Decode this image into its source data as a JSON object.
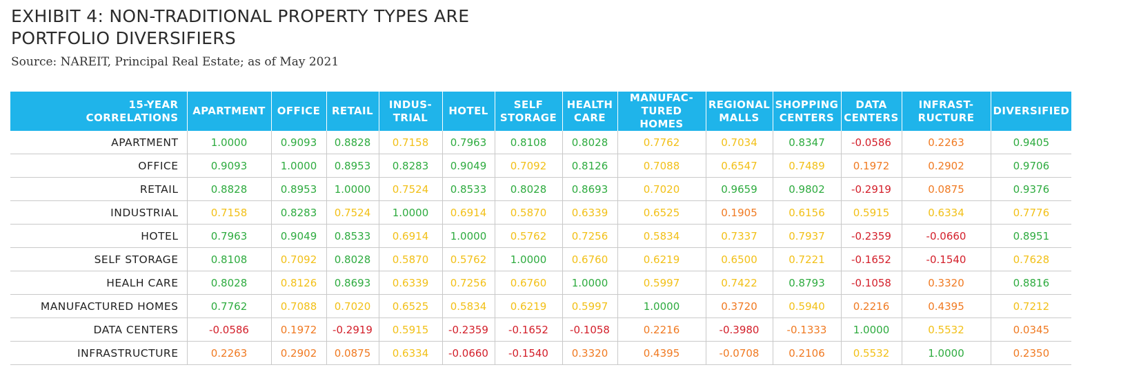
{
  "title_line1": "EXHIBIT 4: NON-TRADITIONAL PROPERTY TYPES ARE",
  "title_line2": "PORTFOLIO DIVERSIFIERS",
  "source": "Source: NAREIT, Principal Real Estate; as of May 2021",
  "colors": {
    "header_bg": "#1fb4ea",
    "green": "#2eab3f",
    "yellow": "#f2c018",
    "orange": "#f07a22",
    "red": "#d31f2a"
  },
  "corner_header": "15-YEAR\nCORRELATIONS",
  "columns": [
    "APARTMENT",
    "OFFICE",
    "RETAIL",
    "INDUS-\nTRIAL",
    "HOTEL",
    "SELF\nSTORAGE",
    "HEALTH\nCARE",
    "MANUFAC-\nTURED HOMES",
    "REGIONAL\nMALLS",
    "SHOPPING\nCENTERS",
    "DATA\nCENTERS",
    "INFRAST-\nRUCTURE",
    "DIVERSIFIED"
  ],
  "rows": [
    {
      "label": "APARTMENT",
      "cells": [
        {
          "v": "1.0000",
          "c": "green"
        },
        {
          "v": "0.9093",
          "c": "green"
        },
        {
          "v": "0.8828",
          "c": "green"
        },
        {
          "v": "0.7158",
          "c": "yellow"
        },
        {
          "v": "0.7963",
          "c": "green"
        },
        {
          "v": "0.8108",
          "c": "green"
        },
        {
          "v": "0.8028",
          "c": "green"
        },
        {
          "v": "0.7762",
          "c": "yellow"
        },
        {
          "v": "0.7034",
          "c": "yellow"
        },
        {
          "v": "0.8347",
          "c": "green"
        },
        {
          "v": "-0.0586",
          "c": "red"
        },
        {
          "v": "0.2263",
          "c": "orange"
        },
        {
          "v": "0.9405",
          "c": "green"
        }
      ]
    },
    {
      "label": "OFFICE",
      "cells": [
        {
          "v": "0.9093",
          "c": "green"
        },
        {
          "v": "1.0000",
          "c": "green"
        },
        {
          "v": "0.8953",
          "c": "green"
        },
        {
          "v": "0.8283",
          "c": "green"
        },
        {
          "v": "0.9049",
          "c": "green"
        },
        {
          "v": "0.7092",
          "c": "yellow"
        },
        {
          "v": "0.8126",
          "c": "green"
        },
        {
          "v": "0.7088",
          "c": "yellow"
        },
        {
          "v": "0.6547",
          "c": "yellow"
        },
        {
          "v": "0.7489",
          "c": "yellow"
        },
        {
          "v": "0.1972",
          "c": "orange"
        },
        {
          "v": "0.2902",
          "c": "orange"
        },
        {
          "v": "0.9706",
          "c": "green"
        }
      ]
    },
    {
      "label": "RETAIL",
      "cells": [
        {
          "v": "0.8828",
          "c": "green"
        },
        {
          "v": "0.8953",
          "c": "green"
        },
        {
          "v": "1.0000",
          "c": "green"
        },
        {
          "v": "0.7524",
          "c": "yellow"
        },
        {
          "v": "0.8533",
          "c": "green"
        },
        {
          "v": "0.8028",
          "c": "green"
        },
        {
          "v": "0.8693",
          "c": "green"
        },
        {
          "v": "0.7020",
          "c": "yellow"
        },
        {
          "v": "0.9659",
          "c": "green"
        },
        {
          "v": "0.9802",
          "c": "green"
        },
        {
          "v": "-0.2919",
          "c": "red"
        },
        {
          "v": "0.0875",
          "c": "orange"
        },
        {
          "v": "0.9376",
          "c": "green"
        }
      ]
    },
    {
      "label": "INDUSTRIAL",
      "cells": [
        {
          "v": "0.7158",
          "c": "yellow"
        },
        {
          "v": "0.8283",
          "c": "green"
        },
        {
          "v": "0.7524",
          "c": "yellow"
        },
        {
          "v": "1.0000",
          "c": "green"
        },
        {
          "v": "0.6914",
          "c": "yellow"
        },
        {
          "v": "0.5870",
          "c": "yellow"
        },
        {
          "v": "0.6339",
          "c": "yellow"
        },
        {
          "v": "0.6525",
          "c": "yellow"
        },
        {
          "v": "0.1905",
          "c": "orange"
        },
        {
          "v": "0.6156",
          "c": "yellow"
        },
        {
          "v": "0.5915",
          "c": "yellow"
        },
        {
          "v": "0.6334",
          "c": "yellow"
        },
        {
          "v": "0.7776",
          "c": "yellow"
        }
      ]
    },
    {
      "label": "HOTEL",
      "cells": [
        {
          "v": "0.7963",
          "c": "green"
        },
        {
          "v": "0.9049",
          "c": "green"
        },
        {
          "v": "0.8533",
          "c": "green"
        },
        {
          "v": "0.6914",
          "c": "yellow"
        },
        {
          "v": "1.0000",
          "c": "green"
        },
        {
          "v": "0.5762",
          "c": "yellow"
        },
        {
          "v": "0.7256",
          "c": "yellow"
        },
        {
          "v": "0.5834",
          "c": "yellow"
        },
        {
          "v": "0.7337",
          "c": "yellow"
        },
        {
          "v": "0.7937",
          "c": "yellow"
        },
        {
          "v": "-0.2359",
          "c": "red"
        },
        {
          "v": "-0.0660",
          "c": "red"
        },
        {
          "v": "0.8951",
          "c": "green"
        }
      ]
    },
    {
      "label": "SELF STORAGE",
      "cells": [
        {
          "v": "0.8108",
          "c": "green"
        },
        {
          "v": "0.7092",
          "c": "yellow"
        },
        {
          "v": "0.8028",
          "c": "green"
        },
        {
          "v": "0.5870",
          "c": "yellow"
        },
        {
          "v": "0.5762",
          "c": "yellow"
        },
        {
          "v": "1.0000",
          "c": "green"
        },
        {
          "v": "0.6760",
          "c": "yellow"
        },
        {
          "v": "0.6219",
          "c": "yellow"
        },
        {
          "v": "0.6500",
          "c": "yellow"
        },
        {
          "v": "0.7221",
          "c": "yellow"
        },
        {
          "v": "-0.1652",
          "c": "red"
        },
        {
          "v": "-0.1540",
          "c": "red"
        },
        {
          "v": "0.7628",
          "c": "yellow"
        }
      ]
    },
    {
      "label": "HEALH CARE",
      "cells": [
        {
          "v": "0.8028",
          "c": "green"
        },
        {
          "v": "0.8126",
          "c": "yellow"
        },
        {
          "v": "0.8693",
          "c": "green"
        },
        {
          "v": "0.6339",
          "c": "yellow"
        },
        {
          "v": "0.7256",
          "c": "yellow"
        },
        {
          "v": "0.6760",
          "c": "yellow"
        },
        {
          "v": "1.0000",
          "c": "green"
        },
        {
          "v": "0.5997",
          "c": "yellow"
        },
        {
          "v": "0.7422",
          "c": "yellow"
        },
        {
          "v": "0.8793",
          "c": "green"
        },
        {
          "v": "-0.1058",
          "c": "red"
        },
        {
          "v": "0.3320",
          "c": "orange"
        },
        {
          "v": "0.8816",
          "c": "green"
        }
      ]
    },
    {
      "label": "MANUFACTURED HOMES",
      "cells": [
        {
          "v": "0.7762",
          "c": "green"
        },
        {
          "v": "0.7088",
          "c": "yellow"
        },
        {
          "v": "0.7020",
          "c": "yellow"
        },
        {
          "v": "0.6525",
          "c": "yellow"
        },
        {
          "v": "0.5834",
          "c": "yellow"
        },
        {
          "v": "0.6219",
          "c": "yellow"
        },
        {
          "v": "0.5997",
          "c": "yellow"
        },
        {
          "v": "1.0000",
          "c": "green"
        },
        {
          "v": "0.3720",
          "c": "orange"
        },
        {
          "v": "0.5940",
          "c": "yellow"
        },
        {
          "v": "0.2216",
          "c": "orange"
        },
        {
          "v": "0.4395",
          "c": "orange"
        },
        {
          "v": "0.7212",
          "c": "yellow"
        }
      ]
    },
    {
      "label": "DATA CENTERS",
      "cells": [
        {
          "v": "-0.0586",
          "c": "red"
        },
        {
          "v": "0.1972",
          "c": "orange"
        },
        {
          "v": "-0.2919",
          "c": "red"
        },
        {
          "v": "0.5915",
          "c": "yellow"
        },
        {
          "v": "-0.2359",
          "c": "red"
        },
        {
          "v": "-0.1652",
          "c": "red"
        },
        {
          "v": "-0.1058",
          "c": "red"
        },
        {
          "v": "0.2216",
          "c": "orange"
        },
        {
          "v": "-0.3980",
          "c": "red"
        },
        {
          "v": "-0.1333",
          "c": "orange"
        },
        {
          "v": "1.0000",
          "c": "green"
        },
        {
          "v": "0.5532",
          "c": "yellow"
        },
        {
          "v": "0.0345",
          "c": "orange"
        }
      ]
    },
    {
      "label": "INFRASTRUCTURE",
      "cells": [
        {
          "v": "0.2263",
          "c": "orange"
        },
        {
          "v": "0.2902",
          "c": "orange"
        },
        {
          "v": "0.0875",
          "c": "orange"
        },
        {
          "v": "0.6334",
          "c": "yellow"
        },
        {
          "v": "-0.0660",
          "c": "red"
        },
        {
          "v": "-0.1540",
          "c": "red"
        },
        {
          "v": "0.3320",
          "c": "orange"
        },
        {
          "v": "0.4395",
          "c": "orange"
        },
        {
          "v": "-0.0708",
          "c": "orange"
        },
        {
          "v": "0.2106",
          "c": "orange"
        },
        {
          "v": "0.5532",
          "c": "yellow"
        },
        {
          "v": "1.0000",
          "c": "green"
        },
        {
          "v": "0.2350",
          "c": "orange"
        }
      ]
    }
  ]
}
